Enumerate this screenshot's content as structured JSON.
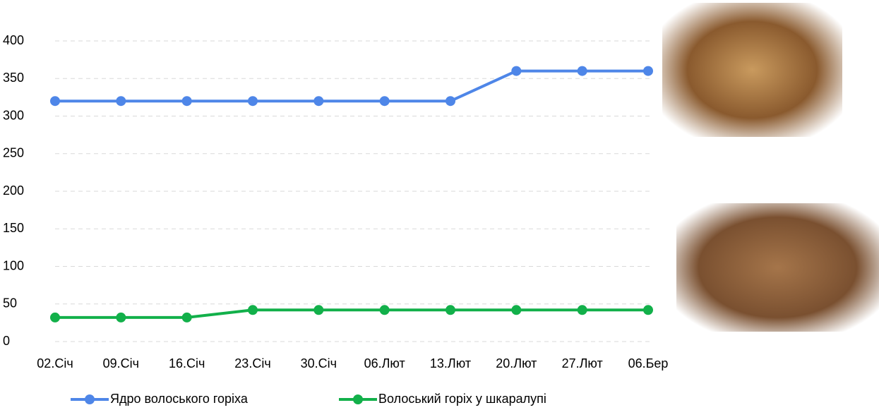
{
  "chart_data": {
    "type": "line",
    "categories": [
      "02.Січ",
      "09.Січ",
      "16.Січ",
      "23.Січ",
      "30.Січ",
      "06.Лют",
      "13.Лют",
      "20.Лют",
      "27.Лют",
      "06.Бер"
    ],
    "series": [
      {
        "name": "Ядро волоського горіха",
        "color": "#4e86e8",
        "values": [
          320,
          320,
          320,
          320,
          320,
          320,
          320,
          360,
          360,
          360
        ]
      },
      {
        "name": "Волоський горіх у шкаралупі",
        "color": "#12b04a",
        "values": [
          32,
          32,
          32,
          42,
          42,
          42,
          42,
          42,
          42,
          42
        ]
      }
    ],
    "ylim": [
      0,
      400
    ],
    "yticks": [
      0,
      50,
      100,
      150,
      200,
      250,
      300,
      350,
      400
    ],
    "grid": true,
    "legend": "bottom"
  }
}
